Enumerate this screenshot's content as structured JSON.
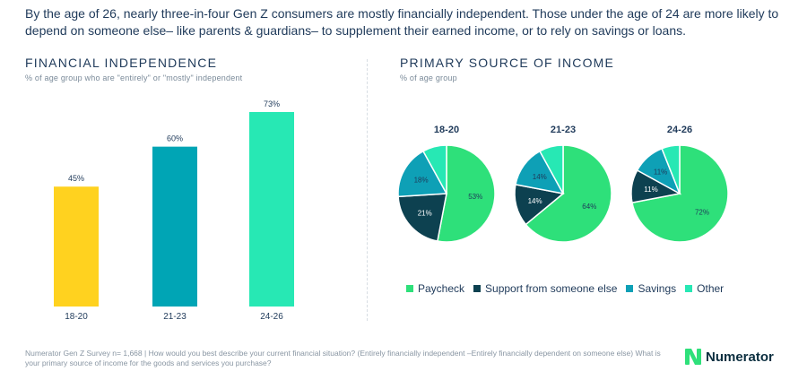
{
  "intro_text": "By the age of 26, nearly three-in-four Gen Z consumers are mostly financially independent. Those under the age of 24 are more likely to depend on someone else– like parents & guardians– to supplement their earned income, or to rely on savings or loans.",
  "chart_data": [
    {
      "type": "bar",
      "title": "FINANCIAL INDEPENDENCE",
      "subtitle": "% of age group who are \"entirely\" or \"mostly\" independent",
      "categories": [
        "18-20",
        "21-23",
        "24-26"
      ],
      "values": [
        45,
        60,
        73
      ],
      "value_labels": [
        "45%",
        "60%",
        "73%"
      ],
      "colors": [
        "#ffd21f",
        "#00a5b5",
        "#27e8b4"
      ],
      "ylim": [
        0,
        73
      ],
      "grid": false
    },
    {
      "type": "pie",
      "title": "PRIMARY SOURCE OF INCOME",
      "subtitle": "% of age group",
      "categories": [
        "Paycheck",
        "Support from someone else",
        "Savings",
        "Other"
      ],
      "colors": [
        "#2ee07a",
        "#0d4150",
        "#0ea0b6",
        "#27e8b4"
      ],
      "pies": [
        {
          "title": "18-20",
          "values": [
            53,
            21,
            18,
            8
          ],
          "labels": [
            "53%",
            "21%",
            "18%",
            ""
          ]
        },
        {
          "title": "21-23",
          "values": [
            64,
            14,
            14,
            8
          ],
          "labels": [
            "64%",
            "14%",
            "14%",
            ""
          ]
        },
        {
          "title": "24-26",
          "values": [
            72,
            11,
            11,
            6
          ],
          "labels": [
            "72%",
            "11%",
            "11%",
            ""
          ]
        }
      ]
    }
  ],
  "legend": [
    "Paycheck",
    "Support from someone else",
    "Savings",
    "Other"
  ],
  "footnote": "Numerator Gen Z Survey n= 1,668 | How would you best describe your current financial situation? (Entirely financially independent –Entirely financially dependent on someone else) What is your primary source of income for the goods and services you purchase?",
  "logo_text": "Numerator",
  "brand_color": "#2ee07a"
}
